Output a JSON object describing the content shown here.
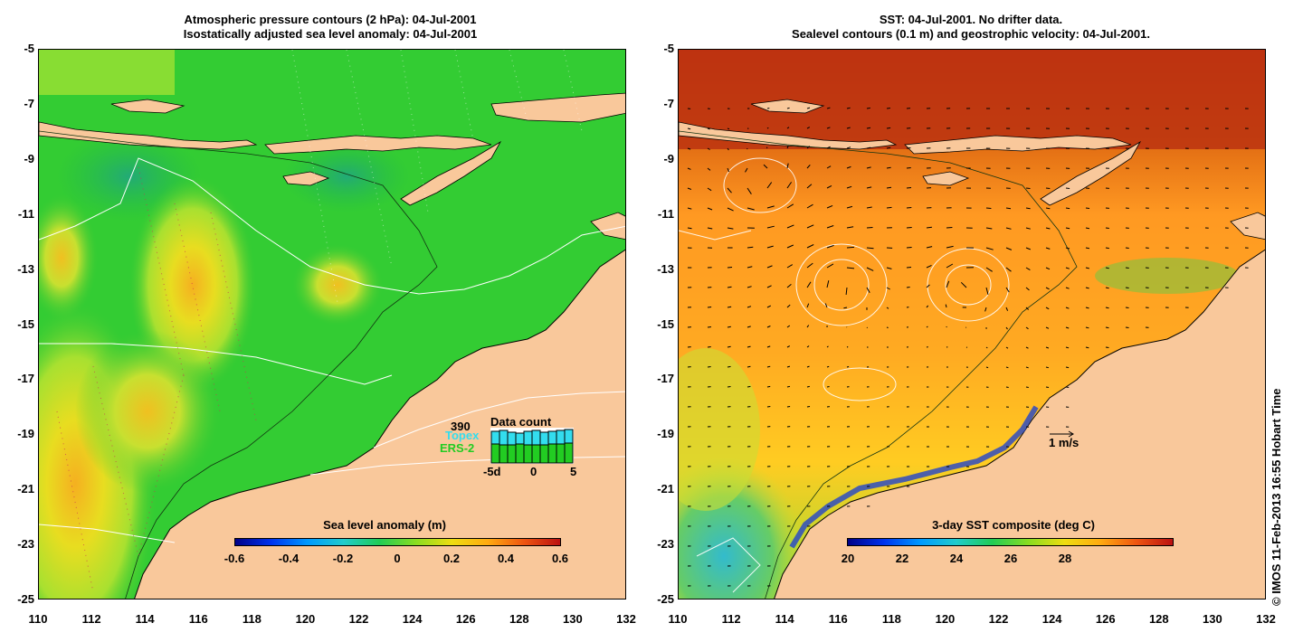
{
  "left_panel": {
    "title_line1": "Atmospheric pressure contours (2 hPa): 04-Jul-2001",
    "title_line2": "Isostatically adjusted sea level anomaly: 04-Jul-2001",
    "colorbar_label": "Sea level anomaly (m)",
    "colorbar_ticks": [
      "-0.6",
      "-0.4",
      "-0.2",
      "0",
      "0.2",
      "0.4",
      "0.6"
    ],
    "data_count": {
      "max_label": "390",
      "title": "Data count",
      "series1": "Topex",
      "series2": "ERS-2",
      "series1_color": "#33ddee",
      "series2_color": "#22cc22",
      "x_ticks": [
        "-5d",
        "0",
        "5"
      ]
    }
  },
  "right_panel": {
    "title_line1": "SST: 04-Jul-2001. No drifter data.",
    "title_line2": "Sealevel contours (0.1 m) and geostrophic velocity: 04-Jul-2001.",
    "colorbar_label": "3-day SST composite (deg C)",
    "colorbar_ticks": [
      "20",
      "22",
      "24",
      "26",
      "28"
    ],
    "velocity_scale_label": "1 m/s"
  },
  "axes": {
    "y_ticks": [
      "-5",
      "-7",
      "-9",
      "-11",
      "-13",
      "-15",
      "-17",
      "-19",
      "-21",
      "-23",
      "-25"
    ],
    "x_ticks": [
      "110",
      "112",
      "114",
      "116",
      "118",
      "120",
      "122",
      "124",
      "126",
      "128",
      "130",
      "132"
    ]
  },
  "map_extent": {
    "lon": [
      110,
      132
    ],
    "lat": [
      -25,
      -5
    ]
  },
  "colors": {
    "land": "#f9c89b",
    "ocean_base": "#22cc33",
    "sst_base": "#ff9a11"
  },
  "credit": "© IMOS 11-Feb-2013 16:55 Hobart Time"
}
